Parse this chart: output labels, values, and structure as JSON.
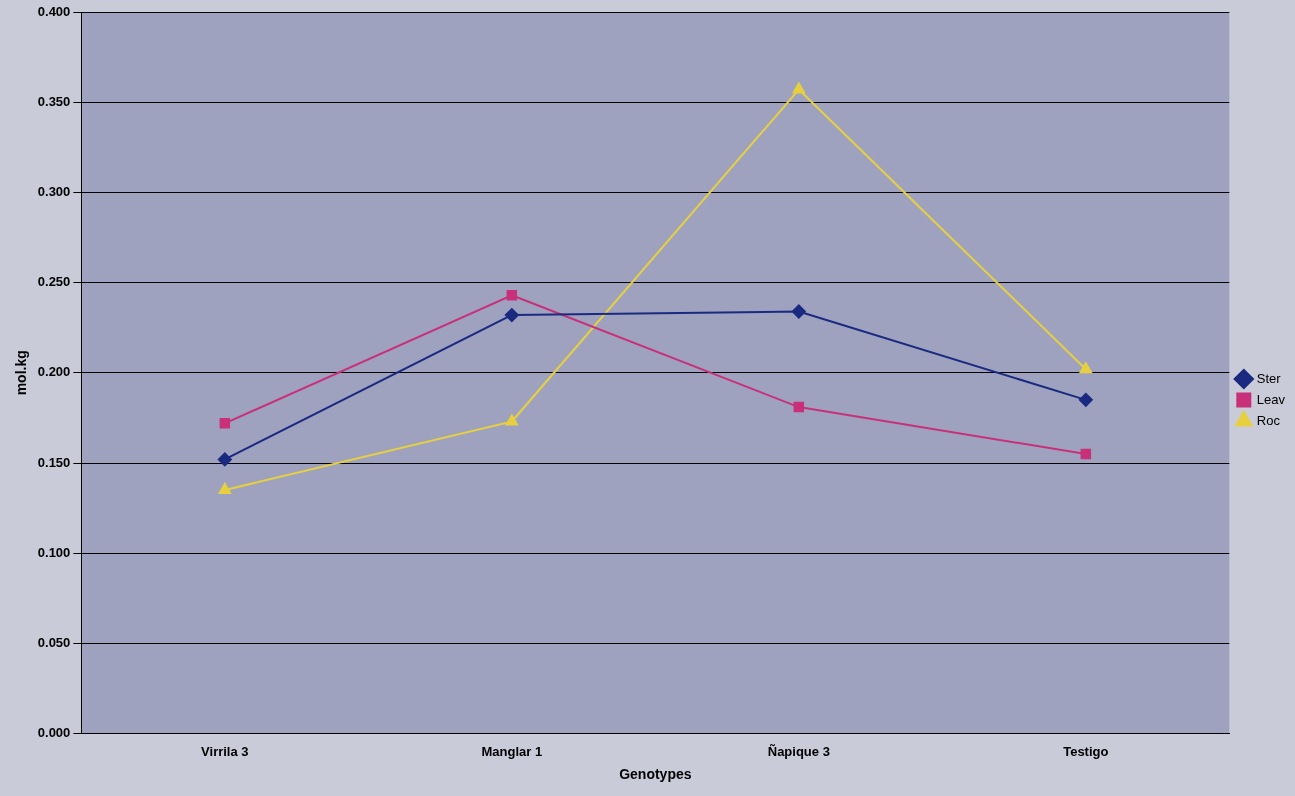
{
  "chart_data": {
    "type": "line",
    "xlabel": "Genotypes",
    "ylabel": "mol.kg",
    "categories": [
      "Virrila 3",
      "Manglar 1",
      "Ñapique 3",
      "Testigo"
    ],
    "series": [
      {
        "name": "Ster",
        "color": "#1a2a80",
        "marker": "diamond",
        "values": [
          0.152,
          0.232,
          0.234,
          0.185
        ]
      },
      {
        "name": "Leav",
        "color": "#c8307a",
        "marker": "square",
        "values": [
          0.172,
          0.243,
          0.181,
          0.155
        ]
      },
      {
        "name": "Roc",
        "color": "#e6d040",
        "marker": "triangle",
        "values": [
          0.135,
          0.173,
          0.357,
          0.202
        ]
      }
    ],
    "ylim": [
      0,
      0.4
    ],
    "yticks": [
      {
        "value": 0,
        "label": "0.000"
      },
      {
        "value": 0.05,
        "label": "0.050"
      },
      {
        "value": 0.1,
        "label": "0.100"
      },
      {
        "value": 0.15,
        "label": "0.150"
      },
      {
        "value": 0.2,
        "label": "0.200"
      },
      {
        "value": 0.25,
        "label": "0.250"
      },
      {
        "value": 0.3,
        "label": "0.300"
      },
      {
        "value": 0.35,
        "label": "0.350"
      },
      {
        "value": 0.4,
        "label": "0.400"
      }
    ],
    "grid": "y",
    "legend": "right",
    "line_style": "solid"
  }
}
